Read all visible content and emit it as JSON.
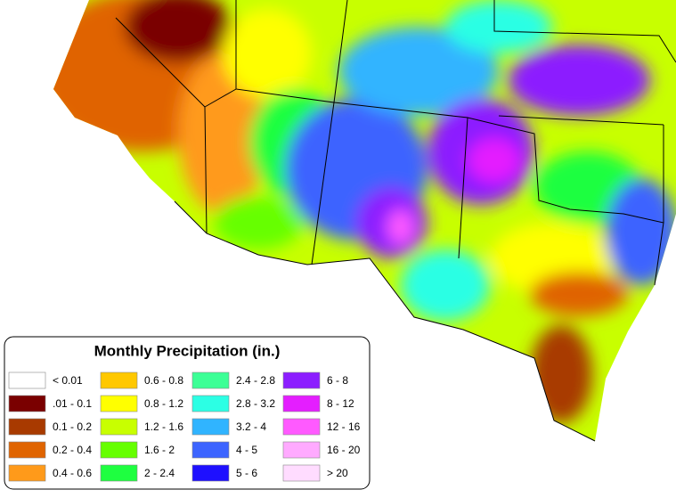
{
  "legend": {
    "title": "Monthly Precipitation (in.)",
    "items": [
      {
        "label": "< 0.01",
        "color": "#ffffff"
      },
      {
        "label": ".01 - 0.1",
        "color": "#7a0000"
      },
      {
        "label": "0.1 - 0.2",
        "color": "#a83a00"
      },
      {
        "label": "0.2 - 0.4",
        "color": "#e06400"
      },
      {
        "label": "0.4 - 0.6",
        "color": "#ff9a1a"
      },
      {
        "label": "0.6 - 0.8",
        "color": "#ffc800"
      },
      {
        "label": "0.8 - 1.2",
        "color": "#ffff00"
      },
      {
        "label": "1.2 - 1.6",
        "color": "#c8ff00"
      },
      {
        "label": "1.6 - 2",
        "color": "#66ff00"
      },
      {
        "label": "2 - 2.4",
        "color": "#1eff40"
      },
      {
        "label": "2.4 - 2.8",
        "color": "#3cff96"
      },
      {
        "label": "2.8 - 3.2",
        "color": "#2cffe4"
      },
      {
        "label": "3.2 - 4",
        "color": "#30b4ff"
      },
      {
        "label": "4 - 5",
        "color": "#3c64ff"
      },
      {
        "label": "5 - 6",
        "color": "#1e10ff"
      },
      {
        "label": "6 - 8",
        "color": "#8c1eff"
      },
      {
        "label": "8 - 12",
        "color": "#e41eff"
      },
      {
        "label": "12 - 16",
        "color": "#ff5aff"
      },
      {
        "label": "16 - 20",
        "color": "#ffaaff"
      },
      {
        "label": "> 20",
        "color": "#ffdcff"
      }
    ]
  }
}
